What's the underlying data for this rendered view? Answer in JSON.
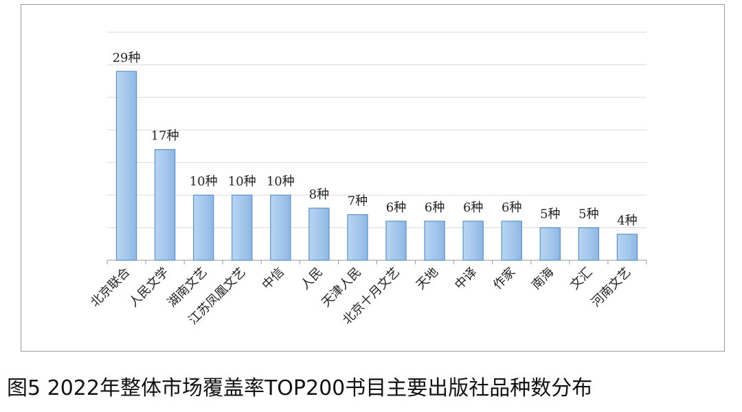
{
  "chart_data": {
    "type": "bar",
    "categories": [
      "北京联合",
      "人民文学",
      "湖南文艺",
      "江苏凤凰文艺",
      "中信",
      "人民",
      "天津人民",
      "北京十月文艺",
      "天地",
      "中译",
      "作家",
      "南海",
      "文汇",
      "河南文艺"
    ],
    "values": [
      29,
      17,
      10,
      10,
      10,
      8,
      7,
      6,
      6,
      6,
      6,
      5,
      5,
      4
    ],
    "data_labels": [
      "29种",
      "17种",
      "10种",
      "10种",
      "10种",
      "8种",
      "7种",
      "6种",
      "6种",
      "6种",
      "6种",
      "5种",
      "5种",
      "4种"
    ],
    "ylim": [
      0,
      35
    ],
    "grid": true,
    "bar_color": "#9ec3ea",
    "bar_edge_color": "#5b8fc8"
  },
  "caption": "图5  2022年整体市场覆盖率TOP200书目主要出版社品种数分布"
}
